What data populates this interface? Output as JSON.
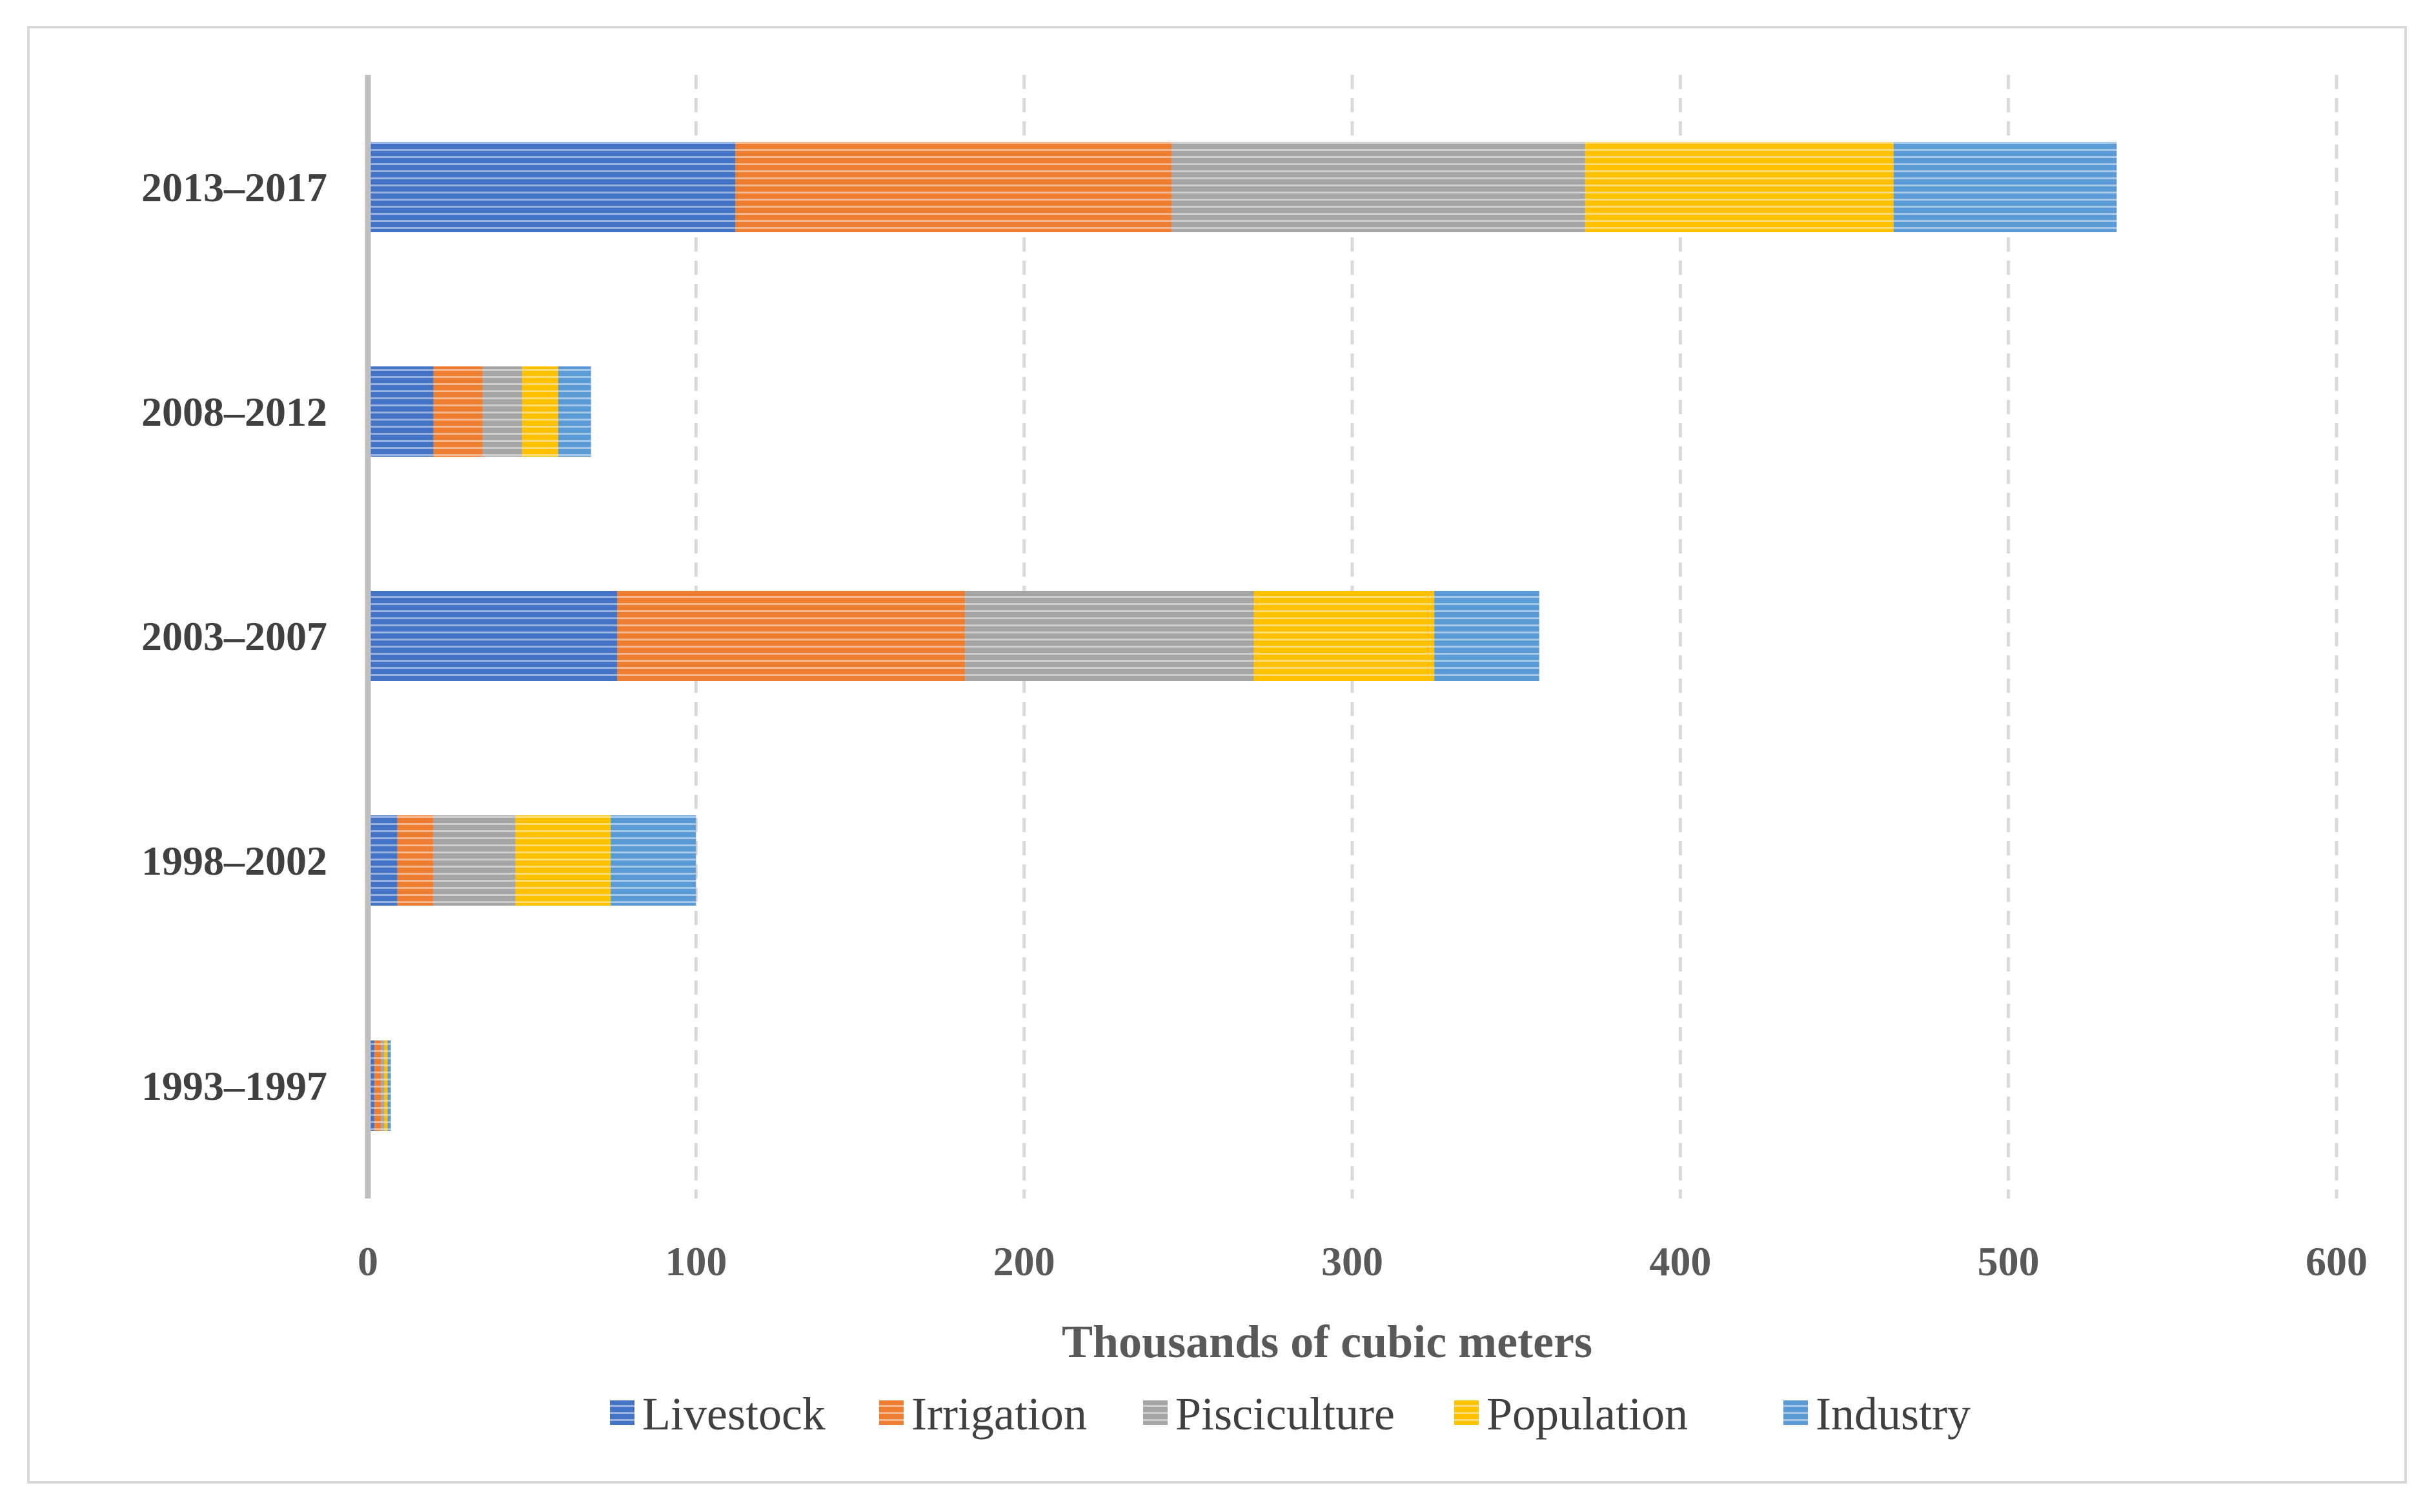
{
  "chart_data": {
    "type": "bar",
    "orientation": "horizontal",
    "stacked": true,
    "categories": [
      "2013–2017",
      "2008–2012",
      "2003–2007",
      "1998–2002",
      "1993–1997"
    ],
    "series": [
      {
        "name": "Livestock",
        "color": "#4472c4",
        "values": [
          112,
          20,
          76,
          9,
          2
        ]
      },
      {
        "name": "Irrigation",
        "color": "#ed7d31",
        "values": [
          133,
          15,
          106,
          11,
          2
        ]
      },
      {
        "name": "Pisciculture",
        "color": "#a5a5a5",
        "values": [
          126,
          12,
          88,
          25,
          1
        ]
      },
      {
        "name": "Population",
        "color": "#ffc000",
        "values": [
          94,
          11,
          55,
          29,
          1
        ]
      },
      {
        "name": "Industry",
        "color": "#5b9bd5",
        "values": [
          68,
          10,
          32,
          26,
          1
        ]
      }
    ],
    "xlabel": "Thousands of cubic meters",
    "ylabel": "",
    "xlim": [
      0,
      600
    ],
    "xticks": [
      "0",
      "100",
      "200",
      "300",
      "400",
      "500",
      "600"
    ],
    "grid": "vertical dashed",
    "legend_position": "bottom"
  }
}
